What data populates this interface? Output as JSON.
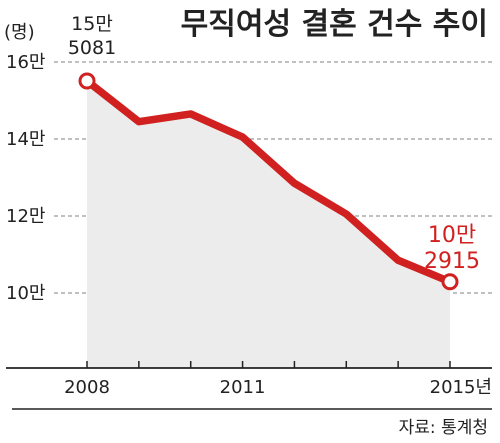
{
  "chart_data": {
    "type": "area",
    "title": "무직여성 결혼 건수 추이",
    "unit_label": "(명)",
    "x": [
      2008,
      2009,
      2010,
      2011,
      2012,
      2013,
      2014,
      2015
    ],
    "x_tick_labels": [
      {
        "value": 2008,
        "label": "2008"
      },
      {
        "value": 2011,
        "label": "2011"
      },
      {
        "value": 2015,
        "label": "2015년"
      }
    ],
    "y_tick_labels": [
      {
        "value": 160000,
        "label": "16만"
      },
      {
        "value": 140000,
        "label": "14만"
      },
      {
        "value": 120000,
        "label": "12만"
      },
      {
        "value": 100000,
        "label": "10만"
      }
    ],
    "series": [
      {
        "values": [
          155081,
          144500,
          146500,
          140500,
          128500,
          120500,
          108500,
          102915
        ]
      }
    ],
    "annotations": {
      "start": {
        "line1": "15만",
        "line2": "5081"
      },
      "end": {
        "line1": "10만",
        "line2": "2915"
      }
    },
    "ylim": [
      87000,
      162000
    ],
    "grid": "horizontal-dashed",
    "colors": {
      "line": "#d0201f",
      "area": "#ececec",
      "grid": "#9a9a9a",
      "text": "#222222"
    }
  },
  "source": "자료: 통계청"
}
